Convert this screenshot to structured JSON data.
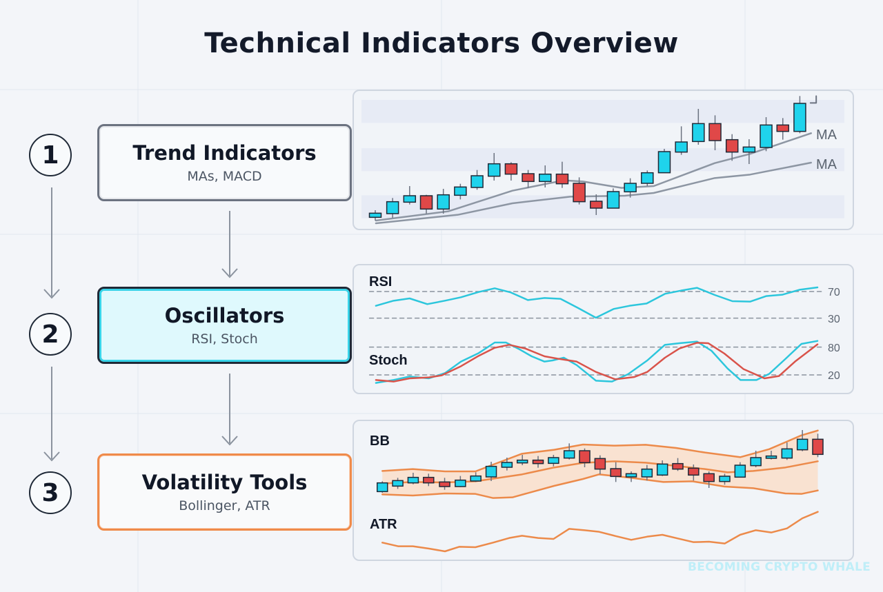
{
  "title": "Technical Indicators Overview",
  "steps": [
    {
      "number": "1",
      "title": "Trend Indicators",
      "subtitle": "MAs, MACD"
    },
    {
      "number": "2",
      "title": "Oscillators",
      "subtitle": "RSI, Stoch"
    },
    {
      "number": "3",
      "title": "Volatility Tools",
      "subtitle": "Bollinger, ATR"
    }
  ],
  "trend_panel": {
    "ma_labels": [
      "MA",
      "MA"
    ]
  },
  "oscillator_panel": {
    "rsi_label": "RSI",
    "rsi_levels": [
      "70",
      "30"
    ],
    "stoch_label": "Stoch",
    "stoch_levels": [
      "80",
      "20"
    ]
  },
  "volatility_panel": {
    "bb_label": "BB",
    "atr_label": "ATR"
  },
  "watermark": "BECOMING CRYPTO WHALE",
  "colors": {
    "bull": "#1fd3ec",
    "bear": "#e04848",
    "ma": "#8d96a3",
    "rsi": "#2cc6dc",
    "stoch_signal": "#d9534a",
    "bollinger": "#ec8a4a",
    "band_fill": "#fbdcc4"
  }
}
